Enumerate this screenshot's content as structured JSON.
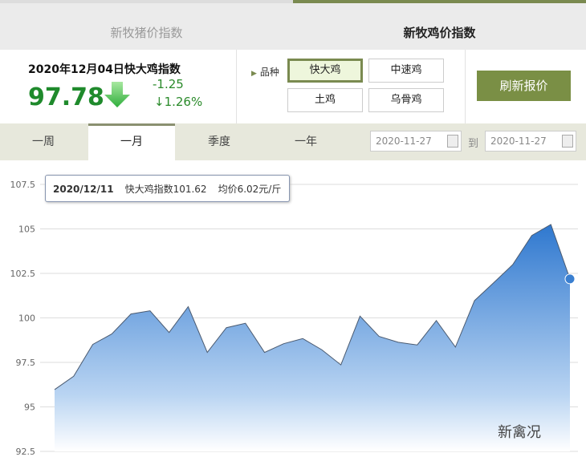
{
  "top_tabs": [
    "新牧猪价指数",
    "新牧鸡价指数"
  ],
  "info": {
    "title": "2020年12月04日快大鸡指数",
    "value": "97.78",
    "change": "-1.25",
    "percent": "↓1.26%",
    "trend": "down"
  },
  "breed": {
    "label": "品种",
    "options": [
      "快大鸡",
      "中速鸡",
      "土鸡",
      "乌骨鸡"
    ],
    "selected": "快大鸡"
  },
  "refresh_label": "刷新报价",
  "period_tabs": [
    "一周",
    "一月",
    "季度",
    "一年"
  ],
  "active_period": "一月",
  "date_from": "2020-11-27",
  "date_to_label": "到",
  "date_to": "2020-11-27",
  "tooltip": {
    "date": "2020/12/11",
    "index": "快大鸡指数101.62",
    "price": "均价6.02元/斤"
  },
  "watermark": "新禽况",
  "chart_data": {
    "type": "area",
    "y_ticks": [
      "107.5",
      "105",
      "102.5",
      "100",
      "97.5",
      "95",
      "92.5"
    ],
    "ylim": [
      92.5,
      107.5
    ],
    "grid": true,
    "color": "#3a7fd0",
    "values": [
      95.97,
      96.72,
      98.51,
      99.1,
      100.22,
      100.4,
      99.18,
      100.63,
      98.06,
      99.45,
      99.7,
      98.06,
      98.55,
      98.84,
      98.21,
      97.36,
      100.1,
      98.96,
      98.63,
      98.48,
      99.85,
      98.36,
      100.97,
      101.97,
      102.99,
      104.63,
      105.25,
      102.19
    ]
  }
}
